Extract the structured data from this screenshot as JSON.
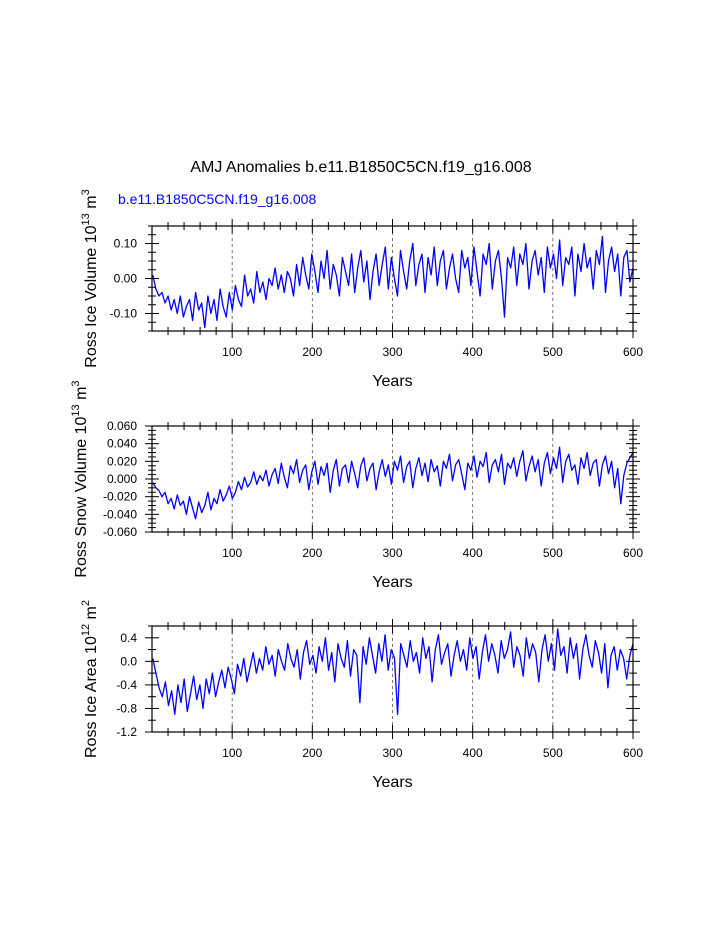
{
  "title": "AMJ Anomalies b.e11.B1850C5CN.f19_g16.008",
  "subtitle": "b.e11.B1850C5CN.f19_g16.008",
  "colors": {
    "series": "#0000ff",
    "subtitle": "#0000ff",
    "axes": "#000000",
    "grid": "#555555"
  },
  "chart_data": [
    {
      "type": "line",
      "ylabel": "Ross Ice Volume 10",
      "ylabel_sup1": "13",
      "ylabel_mid": " m",
      "ylabel_sup2": "3",
      "xlabel": "Years",
      "xlim": [
        0,
        600
      ],
      "ylim": [
        -0.15,
        0.15
      ],
      "xticks": [
        100,
        200,
        300,
        400,
        500,
        600
      ],
      "xtick_labels": [
        "100",
        "200",
        "300",
        "400",
        "500",
        "600"
      ],
      "yticks": [
        -0.1,
        0.0,
        0.1
      ],
      "ytick_labels": [
        "-0.10",
        "0.00",
        "0.10"
      ],
      "grid": "x-dashed",
      "series": [
        {
          "values": [
            0.01,
            -0.03,
            -0.05,
            -0.04,
            -0.07,
            -0.05,
            -0.09,
            -0.06,
            -0.1,
            -0.05,
            -0.11,
            -0.08,
            -0.06,
            -0.12,
            -0.04,
            -0.09,
            -0.07,
            -0.14,
            -0.05,
            -0.1,
            -0.06,
            -0.12,
            -0.03,
            -0.08,
            -0.11,
            -0.04,
            -0.09,
            -0.02,
            -0.06,
            -0.08,
            0.01,
            -0.05,
            -0.03,
            -0.07,
            0.02,
            -0.04,
            -0.01,
            -0.06,
            0.0,
            -0.02,
            0.03,
            -0.03,
            0.01,
            -0.04,
            0.02,
            0.0,
            -0.05,
            0.04,
            -0.02,
            0.06,
            0.01,
            -0.03,
            0.07,
            0.02,
            -0.04,
            0.05,
            0.0,
            0.08,
            -0.03,
            0.04,
            0.01,
            -0.05,
            0.06,
            0.02,
            -0.02,
            0.07,
            -0.04,
            0.03,
            0.08,
            -0.01,
            0.05,
            -0.06,
            0.02,
            0.07,
            -0.02,
            0.04,
            0.09,
            -0.03,
            0.06,
            0.0,
            -0.05,
            0.08,
            0.02,
            -0.03,
            0.05,
            0.1,
            -0.02,
            0.04,
            0.07,
            -0.04,
            0.06,
            0.01,
            0.09,
            -0.02,
            0.05,
            0.08,
            -0.03,
            0.03,
            0.07,
            0.0,
            -0.04,
            0.08,
            0.03,
            0.06,
            -0.02,
            0.09,
            0.02,
            -0.05,
            0.07,
            0.04,
            0.1,
            -0.03,
            0.05,
            0.08,
            0.0,
            -0.11,
            0.06,
            0.03,
            0.09,
            -0.02,
            0.07,
            0.04,
            0.1,
            -0.03,
            0.05,
            0.08,
            0.01,
            0.06,
            -0.04,
            0.09,
            0.03,
            0.07,
            0.0,
            0.11,
            -0.02,
            0.06,
            0.04,
            0.09,
            -0.05,
            0.07,
            0.02,
            0.1,
            0.03,
            0.06,
            -0.03,
            0.08,
            0.04,
            0.12,
            -0.04,
            0.05,
            0.09,
            0.02,
            0.07,
            -0.05,
            0.06,
            0.08,
            -0.01,
            0.03
          ]
        }
      ]
    },
    {
      "type": "line",
      "ylabel": "Ross Snow Volume 10",
      "ylabel_sup1": "13",
      "ylabel_mid": " m",
      "ylabel_sup2": "3",
      "xlabel": "Years",
      "xlim": [
        0,
        600
      ],
      "ylim": [
        -0.06,
        0.06
      ],
      "xticks": [
        100,
        200,
        300,
        400,
        500,
        600
      ],
      "xtick_labels": [
        "100",
        "200",
        "300",
        "400",
        "500",
        "600"
      ],
      "yticks": [
        -0.06,
        -0.04,
        -0.02,
        0.0,
        0.02,
        0.04,
        0.06
      ],
      "ytick_labels": [
        "-0.060",
        "-0.040",
        "-0.020",
        "0.000",
        "0.020",
        "0.040",
        "0.060"
      ],
      "grid": "x-dashed",
      "series": [
        {
          "values": [
            -0.004,
            -0.01,
            -0.013,
            -0.02,
            -0.015,
            -0.028,
            -0.022,
            -0.034,
            -0.018,
            -0.03,
            -0.025,
            -0.04,
            -0.02,
            -0.033,
            -0.045,
            -0.026,
            -0.038,
            -0.03,
            -0.015,
            -0.035,
            -0.022,
            -0.028,
            -0.012,
            -0.025,
            -0.018,
            -0.008,
            -0.022,
            -0.015,
            -0.003,
            -0.012,
            0.002,
            -0.009,
            -0.004,
            0.008,
            -0.006,
            0.004,
            -0.002,
            0.01,
            -0.008,
            0.005,
            0.012,
            -0.005,
            0.018,
            0.002,
            -0.01,
            0.015,
            0.006,
            0.022,
            -0.004,
            0.01,
            0.016,
            -0.012,
            0.008,
            0.02,
            -0.006,
            0.014,
            0.004,
            0.018,
            -0.015,
            0.01,
            0.022,
            -0.008,
            0.012,
            0.016,
            -0.004,
            0.02,
            0.006,
            -0.01,
            0.015,
            0.024,
            -0.002,
            0.012,
            0.018,
            -0.012,
            0.008,
            0.022,
            0.003,
            0.016,
            -0.006,
            0.02,
            0.01,
            0.026,
            -0.004,
            0.014,
            0.02,
            -0.01,
            0.012,
            0.024,
            0.004,
            0.018,
            -0.003,
            0.022,
            0.008,
            0.015,
            -0.008,
            0.02,
            0.012,
            0.028,
            -0.002,
            0.016,
            0.022,
            0.006,
            -0.012,
            0.018,
            0.01,
            0.026,
            0.002,
            0.02,
            0.014,
            0.03,
            -0.004,
            0.016,
            0.022,
            0.008,
            0.028,
            -0.006,
            0.018,
            0.012,
            0.024,
            0.003,
            0.02,
            0.032,
            -0.002,
            0.014,
            0.026,
            0.008,
            0.022,
            -0.008,
            0.018,
            0.03,
            0.006,
            0.024,
            0.012,
            0.036,
            -0.004,
            0.02,
            0.028,
            0.01,
            0.016,
            -0.006,
            0.024,
            0.012,
            0.03,
            0.004,
            0.018,
            0.022,
            -0.008,
            0.016,
            0.026,
            0.006,
            0.02,
            -0.01,
            0.012,
            -0.028,
            0.004,
            0.018,
            0.024,
            0.03
          ]
        }
      ]
    },
    {
      "type": "line",
      "ylabel": "Ross Ice Area 10",
      "ylabel_sup1": "12",
      "ylabel_mid": " m",
      "ylabel_sup2": "2",
      "xlabel": "Years",
      "xlim": [
        0,
        600
      ],
      "ylim": [
        -1.2,
        0.6
      ],
      "xticks": [
        100,
        200,
        300,
        400,
        500,
        600
      ],
      "xtick_labels": [
        "100",
        "200",
        "300",
        "400",
        "500",
        "600"
      ],
      "yticks": [
        -1.2,
        -0.8,
        -0.4,
        0.0,
        0.4
      ],
      "ytick_labels": [
        "-1.2",
        "-0.8",
        "-0.4",
        "0.0",
        "0.4"
      ],
      "grid": "x-dashed",
      "series": [
        {
          "values": [
            0.05,
            -0.2,
            -0.45,
            -0.6,
            -0.35,
            -0.75,
            -0.5,
            -0.9,
            -0.4,
            -0.7,
            -0.3,
            -0.85,
            -0.55,
            -0.25,
            -0.65,
            -0.4,
            -0.8,
            -0.3,
            -0.55,
            -0.2,
            -0.6,
            -0.35,
            -0.15,
            -0.45,
            -0.1,
            -0.3,
            -0.55,
            -0.05,
            -0.25,
            0.05,
            -0.35,
            -0.1,
            0.15,
            -0.2,
            0.05,
            -0.15,
            0.25,
            -0.05,
            0.1,
            -0.25,
            0.2,
            0.0,
            -0.15,
            0.3,
            0.05,
            -0.1,
            0.2,
            -0.3,
            0.15,
            0.35,
            -0.05,
            0.1,
            -0.2,
            0.25,
            0.0,
            0.4,
            -0.15,
            0.15,
            -0.35,
            0.3,
            0.05,
            -0.1,
            0.35,
            -0.25,
            0.2,
            0.1,
            -0.7,
            0.25,
            -0.05,
            0.4,
            0.1,
            -0.2,
            0.3,
            0.0,
            0.45,
            -0.15,
            0.2,
            0.05,
            -0.9,
            0.3,
            0.1,
            -0.1,
            0.35,
            0.0,
            0.15,
            -0.2,
            0.4,
            0.05,
            0.25,
            -0.35,
            0.2,
            0.45,
            -0.05,
            0.15,
            0.3,
            -0.25,
            0.1,
            0.35,
            0.0,
            0.2,
            -0.15,
            0.4,
            0.05,
            0.25,
            -0.3,
            0.15,
            0.45,
            0.0,
            0.3,
            0.1,
            -0.2,
            0.35,
            0.05,
            0.2,
            0.5,
            -0.1,
            0.25,
            0.1,
            -0.25,
            0.4,
            0.05,
            0.3,
            0.15,
            -0.35,
            0.2,
            0.45,
            0.0,
            0.3,
            -0.15,
            0.55,
            0.1,
            0.25,
            -0.2,
            0.4,
            0.05,
            0.3,
            -0.3,
            0.2,
            0.45,
            0.1,
            -0.1,
            0.35,
            0.15,
            -0.2,
            0.3,
            -0.45,
            0.1,
            0.25,
            -0.15,
            0.2,
            0.05,
            -0.3,
            0.1,
            0.3
          ]
        }
      ]
    }
  ]
}
